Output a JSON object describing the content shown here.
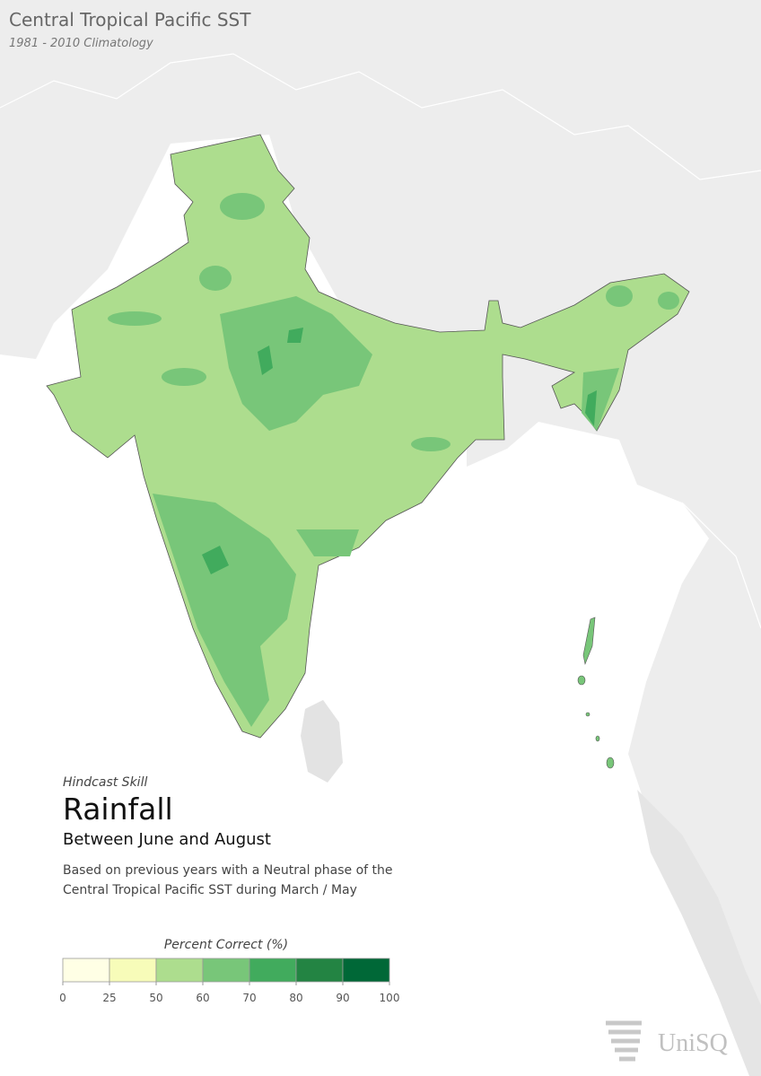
{
  "header": {
    "title": "Central Tropical Pacific SST",
    "subtitle": "1981 - 2010 Climatology"
  },
  "info": {
    "kicker": "Hindcast Skill",
    "variable": "Rainfall",
    "period": "Between June and August",
    "description": [
      "Based on previous years with a Neutral phase of the",
      "Central Tropical Pacific SST during March / May"
    ]
  },
  "legend": {
    "title": "Percent Correct (%)",
    "ticks": [
      0,
      25,
      50,
      60,
      70,
      80,
      90,
      100
    ],
    "colors": [
      "#ffffe5",
      "#f7fcb9",
      "#addd8e",
      "#78c679",
      "#41ab5d",
      "#238443",
      "#006837"
    ]
  },
  "logo": "UniSQ"
}
